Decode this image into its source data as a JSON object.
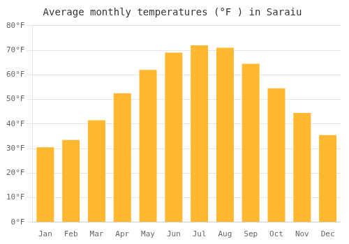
{
  "chart_data": {
    "type": "bar",
    "title": "Average monthly temperatures (°F ) in Saraiu",
    "categories": [
      "Jan",
      "Feb",
      "Mar",
      "Apr",
      "May",
      "Jun",
      "Jul",
      "Aug",
      "Sep",
      "Oct",
      "Nov",
      "Dec"
    ],
    "values": [
      30.5,
      33.5,
      41.5,
      52.5,
      62.0,
      69.0,
      72.0,
      71.0,
      64.5,
      54.5,
      44.5,
      35.5
    ],
    "color": "#FFB830",
    "ylim": [
      0,
      80
    ],
    "yticks": [
      {
        "value": 0,
        "label": "0°F"
      },
      {
        "value": 10,
        "label": "10°F"
      },
      {
        "value": 20,
        "label": "20°F"
      },
      {
        "value": 30,
        "label": "30°F"
      },
      {
        "value": 40,
        "label": "40°F"
      },
      {
        "value": 50,
        "label": "50°F"
      },
      {
        "value": 60,
        "label": "60°F"
      },
      {
        "value": 70,
        "label": "70°F"
      },
      {
        "value": 80,
        "label": "80°F"
      }
    ],
    "grid": true
  }
}
